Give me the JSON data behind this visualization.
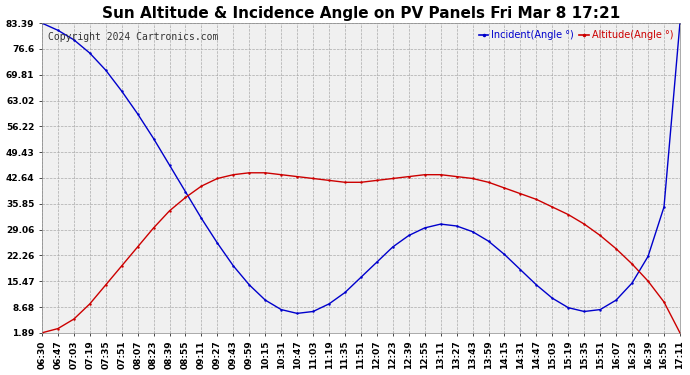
{
  "title": "Sun Altitude & Incidence Angle on PV Panels Fri Mar 8 17:21",
  "copyright": "Copyright 2024 Cartronics.com",
  "legend_incident": "Incident(Angle °)",
  "legend_altitude": "Altitude(Angle °)",
  "incident_color": "#cc0000",
  "altitude_color": "#0000cc",
  "bg_color": "#ffffff",
  "plot_bg_color": "#f0f0f0",
  "grid_color": "#aaaaaa",
  "text_color": "#000000",
  "title_color": "#000000",
  "legend_incident_color": "#0000cc",
  "legend_altitude_color": "#cc0000",
  "yticks": [
    1.89,
    8.68,
    15.47,
    22.26,
    29.06,
    35.85,
    42.64,
    49.43,
    56.22,
    63.02,
    69.81,
    76.6,
    83.39
  ],
  "xtick_labels": [
    "06:30",
    "06:47",
    "07:03",
    "07:19",
    "07:35",
    "07:51",
    "08:07",
    "08:23",
    "08:39",
    "08:55",
    "09:11",
    "09:27",
    "09:43",
    "09:59",
    "10:15",
    "10:31",
    "10:47",
    "11:03",
    "11:19",
    "11:35",
    "11:51",
    "12:07",
    "12:23",
    "12:39",
    "12:55",
    "13:11",
    "13:27",
    "13:43",
    "13:59",
    "14:15",
    "14:31",
    "14:47",
    "15:03",
    "15:19",
    "15:35",
    "15:51",
    "16:07",
    "16:23",
    "16:39",
    "16:55",
    "17:11"
  ],
  "altitude_values": [
    83.39,
    81.5,
    79.0,
    75.5,
    71.0,
    65.5,
    59.5,
    53.0,
    46.0,
    39.0,
    32.0,
    25.5,
    19.5,
    14.5,
    10.5,
    8.0,
    7.0,
    7.5,
    9.5,
    12.5,
    16.5,
    20.5,
    24.5,
    27.5,
    29.5,
    30.5,
    30.0,
    28.5,
    26.0,
    22.5,
    18.5,
    14.5,
    11.0,
    8.5,
    7.5,
    8.0,
    10.5,
    15.0,
    22.0,
    35.0,
    83.39
  ],
  "incident_values": [
    1.89,
    3.0,
    5.5,
    9.5,
    14.5,
    19.5,
    24.5,
    29.5,
    34.0,
    37.5,
    40.5,
    42.5,
    43.5,
    44.0,
    44.0,
    43.5,
    43.0,
    42.5,
    42.0,
    41.5,
    41.5,
    42.0,
    42.5,
    43.0,
    43.5,
    43.5,
    43.0,
    42.5,
    41.5,
    40.0,
    38.5,
    37.0,
    35.0,
    33.0,
    30.5,
    27.5,
    24.0,
    20.0,
    15.5,
    10.0,
    1.89
  ],
  "ylim_min": 1.89,
  "ylim_max": 83.39,
  "title_fontsize": 11,
  "tick_fontsize": 6.5,
  "copyright_fontsize": 7
}
